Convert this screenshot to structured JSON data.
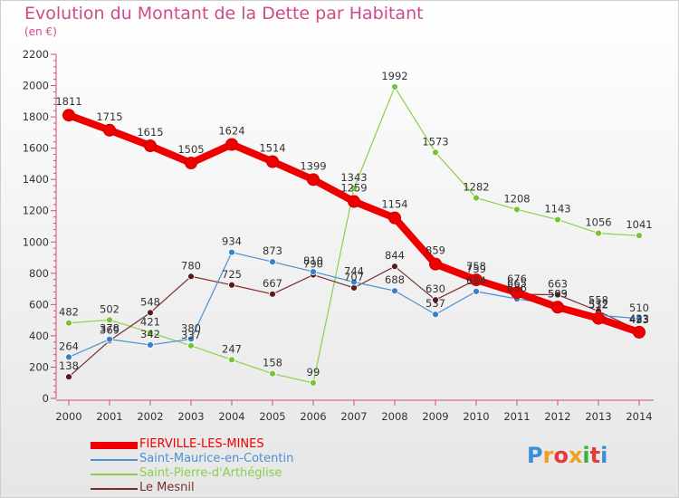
{
  "title": "Evolution du Montant de la Dette par Habitant",
  "subtitle": "(en €)",
  "logo": {
    "text": "Proxiti",
    "colors": [
      "#3a8fd6",
      "#f0a020",
      "#e43a3a",
      "#f0a020",
      "#3ab13a",
      "#e43a3a",
      "#3a8fd6"
    ]
  },
  "chart_data": {
    "type": "line",
    "x": [
      2000,
      2001,
      2002,
      2003,
      2004,
      2005,
      2006,
      2007,
      2008,
      2009,
      2010,
      2011,
      2012,
      2013,
      2014
    ],
    "ylim": [
      0,
      2200
    ],
    "yticks": [
      0,
      200,
      400,
      600,
      800,
      1000,
      1200,
      1400,
      1600,
      1800,
      2000,
      2200
    ],
    "grid": false,
    "legend_position": "bottom-left",
    "series": [
      {
        "name": "Saint-Pierre-d'Arthéglise",
        "color": "#8ccf4c",
        "marker_color": "#7ac13a",
        "width": 1.2,
        "values": [
          482,
          502,
          421,
          337,
          247,
          158,
          99,
          1343,
          1992,
          1573,
          1282,
          1208,
          1143,
          1056,
          1041
        ],
        "labels": [
          "482",
          "502",
          "421",
          "337",
          "247",
          "158",
          "99",
          "1343",
          "1992",
          "1573",
          "1282",
          "1208",
          "1143",
          "1056",
          "1041"
        ]
      },
      {
        "name": "Le Mesnil",
        "color": "#7a2d2d",
        "marker_color": "#5a1a1a",
        "width": 1.2,
        "values": [
          138,
          369,
          548,
          780,
          725,
          667,
          790,
          707,
          844,
          630,
          759,
          665,
          663,
          558,
          433
        ],
        "labels": [
          "138",
          "369",
          "548",
          "780",
          "725",
          "667",
          "790",
          "707",
          "844",
          "630",
          "759",
          "665",
          "663",
          "558",
          "433"
        ]
      },
      {
        "name": "Saint-Maurice-en-Cotentin",
        "color": "#4a90d6",
        "marker_color": "#3a80c6",
        "width": 1.2,
        "values": [
          264,
          378,
          342,
          380,
          934,
          873,
          810,
          744,
          688,
          537,
          684,
          636,
          599,
          532,
          510
        ],
        "labels": [
          "264",
          "378",
          "342",
          "380",
          "934",
          "873",
          "810",
          "744",
          "688",
          "537",
          "684",
          "636",
          "599",
          "532",
          "510"
        ]
      },
      {
        "name": "FIERVILLE-LES-MINES",
        "color": "#ee0000",
        "marker_color": "#ee0000",
        "width": 8,
        "values": [
          1811,
          1715,
          1615,
          1505,
          1624,
          1514,
          1399,
          1259,
          1154,
          859,
          758,
          676,
          583,
          512,
          423
        ],
        "labels": [
          "1811",
          "1715",
          "1615",
          "1505",
          "1624",
          "1514",
          "1399",
          "1259",
          "1154",
          "859",
          "758",
          "676",
          "583",
          "512",
          "423"
        ]
      }
    ],
    "legend": [
      {
        "name": "FIERVILLE-LES-MINES",
        "color": "#ee0000",
        "width": 8
      },
      {
        "name": "Saint-Maurice-en-Cotentin",
        "color": "#4a90d6",
        "width": 2
      },
      {
        "name": "Saint-Pierre-d'Arthéglise",
        "color": "#8ccf4c",
        "width": 2
      },
      {
        "name": "Le Mesnil",
        "color": "#7a2d2d",
        "width": 2
      }
    ]
  }
}
